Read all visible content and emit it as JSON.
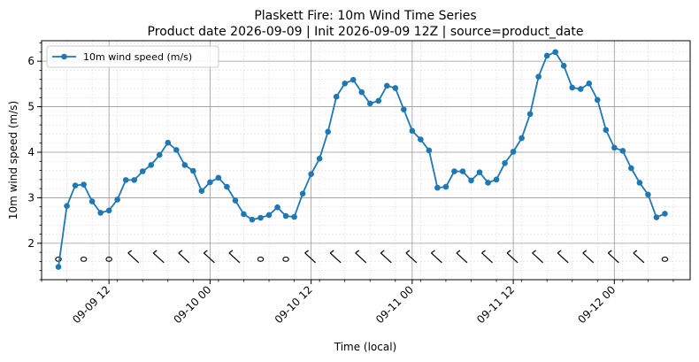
{
  "chart_data": {
    "type": "line",
    "title": "Plaskett Fire: 10m Wind Time Series",
    "subtitle": "Product date 2026-09-09 | Init 2026-09-09 12Z | source=product_date",
    "xlabel": "Time (local)",
    "ylabel": "10m wind speed (m/s)",
    "legend": "top-left",
    "grid": true,
    "xlim": [
      "2026-09-09 04:00",
      "2026-09-12 09:00"
    ],
    "ylim": [
      1.2,
      6.45
    ],
    "x_ticks": [
      "09-09 12",
      "09-10 00",
      "09-10 12",
      "09-11 00",
      "09-11 12",
      "09-12 00"
    ],
    "y_ticks": [
      "2",
      "3",
      "4",
      "5",
      "6"
    ],
    "series": [
      {
        "name": "10m wind speed (m/s)",
        "color": "#1f77b4",
        "x": [
          "2026-09-09 06:00",
          "2026-09-09 07:00",
          "2026-09-09 08:00",
          "2026-09-09 09:00",
          "2026-09-09 10:00",
          "2026-09-09 11:00",
          "2026-09-09 12:00",
          "2026-09-09 13:00",
          "2026-09-09 14:00",
          "2026-09-09 15:00",
          "2026-09-09 16:00",
          "2026-09-09 17:00",
          "2026-09-09 18:00",
          "2026-09-09 19:00",
          "2026-09-09 20:00",
          "2026-09-09 21:00",
          "2026-09-09 22:00",
          "2026-09-09 23:00",
          "2026-09-10 00:00",
          "2026-09-10 01:00",
          "2026-09-10 02:00",
          "2026-09-10 03:00",
          "2026-09-10 04:00",
          "2026-09-10 05:00",
          "2026-09-10 06:00",
          "2026-09-10 07:00",
          "2026-09-10 08:00",
          "2026-09-10 09:00",
          "2026-09-10 10:00",
          "2026-09-10 11:00",
          "2026-09-10 12:00",
          "2026-09-10 13:00",
          "2026-09-10 14:00",
          "2026-09-10 15:00",
          "2026-09-10 16:00",
          "2026-09-10 17:00",
          "2026-09-10 18:00",
          "2026-09-10 19:00",
          "2026-09-10 20:00",
          "2026-09-10 21:00",
          "2026-09-10 22:00",
          "2026-09-10 23:00",
          "2026-09-11 00:00",
          "2026-09-11 01:00",
          "2026-09-11 02:00",
          "2026-09-11 03:00",
          "2026-09-11 04:00",
          "2026-09-11 05:00",
          "2026-09-11 06:00",
          "2026-09-11 07:00",
          "2026-09-11 08:00",
          "2026-09-11 09:00",
          "2026-09-11 10:00",
          "2026-09-11 11:00",
          "2026-09-11 12:00",
          "2026-09-11 13:00",
          "2026-09-11 14:00",
          "2026-09-11 15:00",
          "2026-09-11 16:00",
          "2026-09-11 17:00",
          "2026-09-11 18:00",
          "2026-09-11 19:00",
          "2026-09-11 20:00",
          "2026-09-11 21:00",
          "2026-09-11 22:00",
          "2026-09-11 23:00",
          "2026-09-12 00:00",
          "2026-09-12 01:00",
          "2026-09-12 02:00",
          "2026-09-12 03:00",
          "2026-09-12 04:00",
          "2026-09-12 05:00",
          "2026-09-12 06:00"
        ],
        "values": [
          1.48,
          2.82,
          3.27,
          3.29,
          2.92,
          2.67,
          2.72,
          2.96,
          3.39,
          3.39,
          3.58,
          3.72,
          3.94,
          4.21,
          4.05,
          3.72,
          3.59,
          3.15,
          3.34,
          3.44,
          3.24,
          2.94,
          2.64,
          2.52,
          2.56,
          2.62,
          2.79,
          2.6,
          2.58,
          3.09,
          3.52,
          3.86,
          4.45,
          5.22,
          5.51,
          5.59,
          5.32,
          5.07,
          5.13,
          5.46,
          5.41,
          4.94,
          4.47,
          4.28,
          4.04,
          3.22,
          3.24,
          3.58,
          3.58,
          3.38,
          3.56,
          3.33,
          3.4,
          3.76,
          4.01,
          4.31,
          4.84,
          5.66,
          6.12,
          6.2,
          5.9,
          5.42,
          5.39,
          5.51,
          5.15,
          4.49,
          4.1,
          4.03,
          3.65,
          3.33,
          3.07,
          2.57,
          2.65
        ]
      }
    ],
    "wind_barbs": {
      "y_value": 1.65,
      "x": [
        "2026-09-09 06:00",
        "2026-09-09 09:00",
        "2026-09-09 12:00",
        "2026-09-09 15:00",
        "2026-09-09 18:00",
        "2026-09-09 21:00",
        "2026-09-10 00:00",
        "2026-09-10 03:00",
        "2026-09-10 06:00",
        "2026-09-10 09:00",
        "2026-09-10 12:00",
        "2026-09-10 15:00",
        "2026-09-10 18:00",
        "2026-09-10 21:00",
        "2026-09-11 00:00",
        "2026-09-11 03:00",
        "2026-09-11 06:00",
        "2026-09-11 09:00",
        "2026-09-11 12:00",
        "2026-09-11 15:00",
        "2026-09-11 18:00",
        "2026-09-11 21:00",
        "2026-09-12 00:00",
        "2026-09-12 03:00",
        "2026-09-12 06:00"
      ],
      "kind": [
        "calm",
        "calm",
        "calm",
        "barb",
        "barb",
        "barb",
        "barb",
        "barb",
        "calm",
        "calm",
        "barb",
        "barb",
        "barb",
        "barb",
        "barb",
        "barb",
        "barb",
        "barb",
        "barb",
        "barb",
        "barb",
        "barb",
        "barb",
        "barb",
        "calm"
      ]
    }
  }
}
